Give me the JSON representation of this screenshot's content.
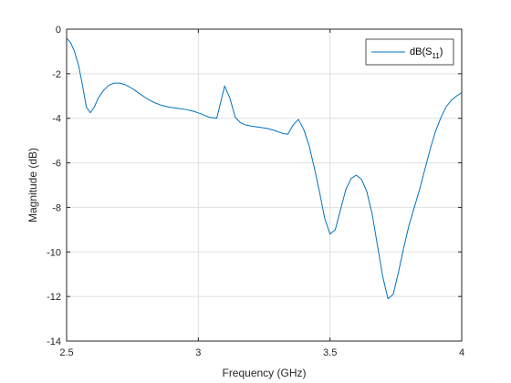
{
  "chart_data": {
    "type": "line",
    "xlabel": "Frequency (GHz)",
    "ylabel": "Magnitude (dB)",
    "xlim": [
      2.5,
      4
    ],
    "ylim": [
      -14,
      0
    ],
    "xticks": [
      2.5,
      3,
      3.5,
      4
    ],
    "yticks": [
      0,
      -2,
      -4,
      -6,
      -8,
      -10,
      -12,
      -14
    ],
    "xtick_labels": [
      "2.5",
      "3",
      "3.5",
      "4"
    ],
    "ytick_labels": [
      "0",
      "-2",
      "-4",
      "-6",
      "-8",
      "-10",
      "-12",
      "-14"
    ],
    "grid": true,
    "legend_position": "top-right",
    "series": [
      {
        "name": "dB(S11)",
        "legend_main": "dB(S",
        "legend_sub": "11",
        "legend_tail": ")",
        "color": "#0072BD",
        "x": [
          2.5,
          2.515,
          2.53,
          2.545,
          2.56,
          2.575,
          2.59,
          2.605,
          2.62,
          2.64,
          2.66,
          2.68,
          2.7,
          2.72,
          2.74,
          2.76,
          2.78,
          2.8,
          2.83,
          2.86,
          2.89,
          2.92,
          2.95,
          2.98,
          3.01,
          3.04,
          3.07,
          3.1,
          3.12,
          3.14,
          3.16,
          3.18,
          3.2,
          3.23,
          3.26,
          3.29,
          3.32,
          3.34,
          3.36,
          3.38,
          3.4,
          3.42,
          3.44,
          3.46,
          3.48,
          3.5,
          3.52,
          3.54,
          3.56,
          3.58,
          3.6,
          3.62,
          3.64,
          3.66,
          3.68,
          3.7,
          3.72,
          3.74,
          3.76,
          3.78,
          3.8,
          3.82,
          3.84,
          3.86,
          3.88,
          3.9,
          3.92,
          3.94,
          3.96,
          3.98,
          4.0
        ],
        "y": [
          -0.4,
          -0.6,
          -1.0,
          -1.6,
          -2.5,
          -3.5,
          -3.75,
          -3.5,
          -3.1,
          -2.75,
          -2.52,
          -2.42,
          -2.42,
          -2.48,
          -2.6,
          -2.75,
          -2.92,
          -3.08,
          -3.28,
          -3.42,
          -3.5,
          -3.55,
          -3.6,
          -3.68,
          -3.8,
          -3.95,
          -4.0,
          -2.55,
          -3.1,
          -3.95,
          -4.2,
          -4.3,
          -4.35,
          -4.4,
          -4.45,
          -4.55,
          -4.68,
          -4.72,
          -4.3,
          -4.05,
          -4.5,
          -5.2,
          -6.2,
          -7.3,
          -8.5,
          -9.2,
          -9.0,
          -8.1,
          -7.2,
          -6.7,
          -6.55,
          -6.75,
          -7.3,
          -8.3,
          -9.7,
          -11.1,
          -12.1,
          -11.9,
          -10.9,
          -9.8,
          -8.8,
          -8.0,
          -7.2,
          -6.3,
          -5.4,
          -4.6,
          -4.0,
          -3.5,
          -3.2,
          -3.0,
          -2.85
        ]
      }
    ]
  }
}
